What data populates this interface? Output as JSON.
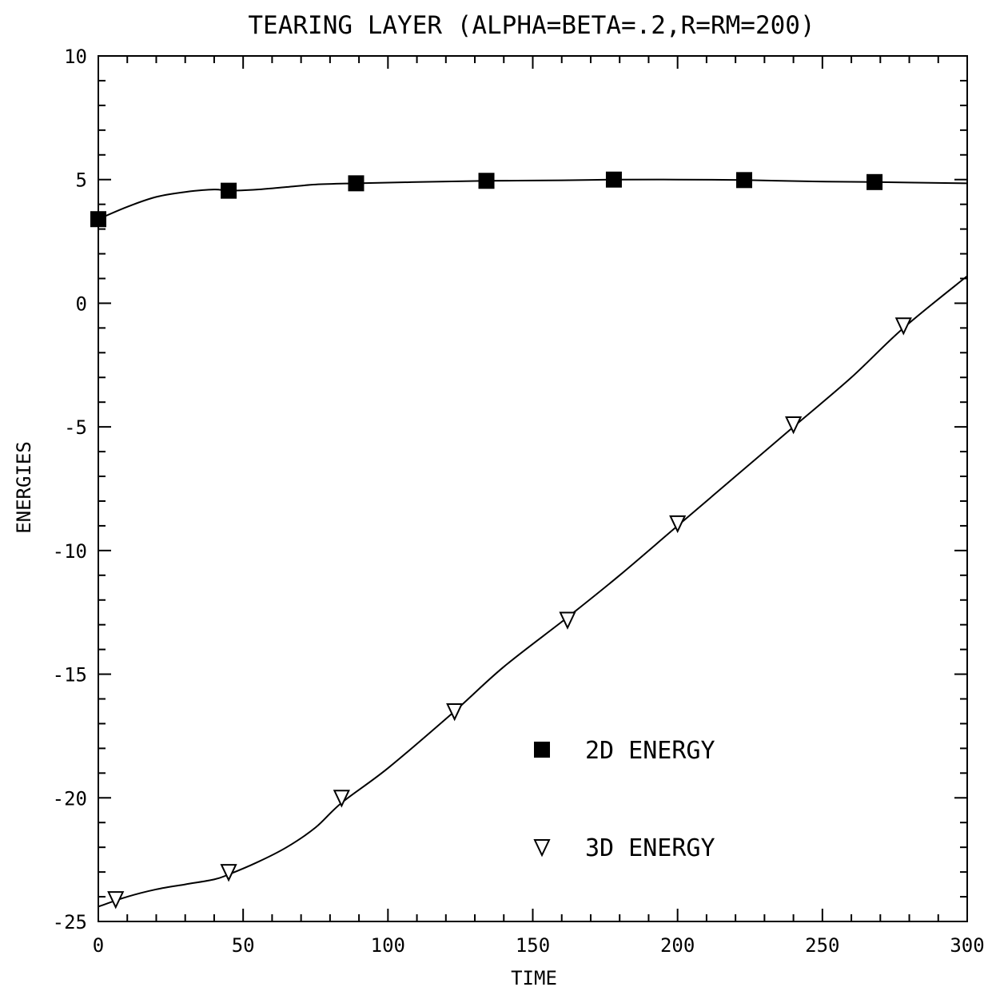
{
  "chart_data": {
    "type": "line",
    "title": "TEARING LAYER (ALPHA=BETA=.2,R=RM=200)",
    "xlabel": "TIME",
    "ylabel": "ENERGIES",
    "xlim": [
      0,
      300
    ],
    "ylim": [
      -25,
      10
    ],
    "x_ticks": [
      0,
      50,
      100,
      150,
      200,
      250,
      300
    ],
    "y_ticks": [
      10,
      5,
      0,
      -5,
      -10,
      -15,
      -20,
      -25
    ],
    "grid": false,
    "legend_position": "lower-right",
    "series": [
      {
        "name": "2D ENERGY",
        "marker": "filled-square",
        "curve": [
          [
            0,
            3.4
          ],
          [
            10,
            3.9
          ],
          [
            20,
            4.3
          ],
          [
            30,
            4.5
          ],
          [
            40,
            4.6
          ],
          [
            45,
            4.55
          ],
          [
            55,
            4.6
          ],
          [
            65,
            4.7
          ],
          [
            75,
            4.8
          ],
          [
            89,
            4.85
          ],
          [
            110,
            4.9
          ],
          [
            134,
            4.95
          ],
          [
            160,
            4.97
          ],
          [
            178,
            5.0
          ],
          [
            200,
            5.0
          ],
          [
            223,
            4.98
          ],
          [
            245,
            4.93
          ],
          [
            268,
            4.9
          ],
          [
            300,
            4.85
          ]
        ],
        "markers": [
          [
            0,
            3.4
          ],
          [
            45,
            4.55
          ],
          [
            89,
            4.85
          ],
          [
            134,
            4.95
          ],
          [
            178,
            5.0
          ],
          [
            223,
            4.98
          ],
          [
            268,
            4.9
          ]
        ]
      },
      {
        "name": "3D ENERGY",
        "marker": "open-triangle-down",
        "curve": [
          [
            0,
            -24.4
          ],
          [
            10,
            -24.0
          ],
          [
            20,
            -23.7
          ],
          [
            30,
            -23.5
          ],
          [
            40,
            -23.3
          ],
          [
            45,
            -23.1
          ],
          [
            55,
            -22.6
          ],
          [
            65,
            -22.0
          ],
          [
            75,
            -21.2
          ],
          [
            84,
            -20.2
          ],
          [
            100,
            -18.8
          ],
          [
            123,
            -16.5
          ],
          [
            140,
            -14.7
          ],
          [
            162,
            -12.7
          ],
          [
            180,
            -11.0
          ],
          [
            200,
            -9.0
          ],
          [
            220,
            -7.0
          ],
          [
            240,
            -5.0
          ],
          [
            260,
            -3.0
          ],
          [
            278,
            -1.0
          ],
          [
            300,
            1.1
          ]
        ],
        "markers": [
          [
            6,
            -24.1
          ],
          [
            45,
            -23.0
          ],
          [
            84,
            -20.0
          ],
          [
            123,
            -16.5
          ],
          [
            162,
            -12.8
          ],
          [
            200,
            -8.9
          ],
          [
            240,
            -4.9
          ],
          [
            278,
            -0.9
          ]
        ]
      }
    ]
  }
}
